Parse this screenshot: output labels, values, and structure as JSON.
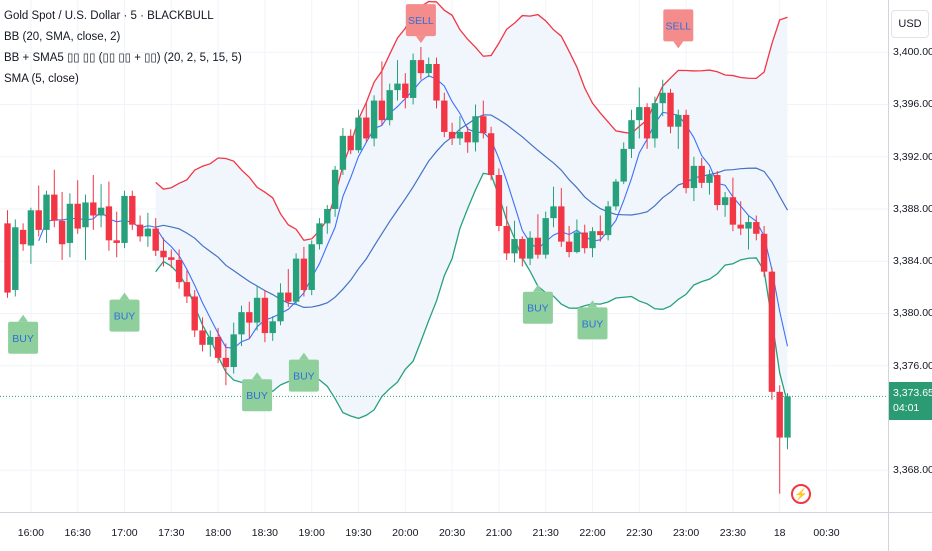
{
  "legend": {
    "symbol": "Gold Spot / U.S. Dollar · 5 · BLACKBULL",
    "indicator_bb": "BB (20, SMA, close, 2)",
    "indicator_custom": "BB + SMA5 ▯▯ ▯▯ (▯▯ ▯▯ + ▯▯) (20, 2, 5, 15, 5)",
    "indicator_sma": "SMA (5, close)"
  },
  "price_axis": {
    "currency_label": "USD",
    "ticks": [
      "3,400.00",
      "3,396.00",
      "3,392.00",
      "3,388.00",
      "3,384.00",
      "3,380.00",
      "3,376.00",
      "3,368.00"
    ],
    "last_price": "3,373.65",
    "countdown": "04:01"
  },
  "time_axis": {
    "ticks": [
      "16:00",
      "16:30",
      "17:00",
      "17:30",
      "18:00",
      "18:30",
      "19:00",
      "19:30",
      "20:00",
      "20:30",
      "21:00",
      "21:30",
      "22:00",
      "22:30",
      "23:00",
      "23:30",
      "18",
      "00:30"
    ]
  },
  "icons": {
    "alert": "lightning-alert-icon"
  },
  "colors": {
    "up": "#26a17b",
    "down": "#f23645",
    "bb_upper": "#f23645",
    "bb_basis": "#4472c4",
    "bb_lower": "#26a17b",
    "bb_fill": "#eef5fc",
    "sma5": "#2962ff",
    "buy_label": "#8fcf9c",
    "sell_label": "#f48c8c",
    "signal_text": "#2f6fdb"
  },
  "chart_data": {
    "type": "candlestick",
    "symbol": "XAUUSD",
    "interval_min": 5,
    "x_range": [
      "15:45",
      "00:55"
    ],
    "ylim": [
      3364.8,
      3404.0
    ],
    "grid": true,
    "candles": [
      {
        "t": "15:45",
        "o": 3386.9,
        "h": 3387.9,
        "l": 3381.2,
        "c": 3381.6
      },
      {
        "t": "15:50",
        "o": 3381.8,
        "h": 3387.2,
        "l": 3381.3,
        "c": 3386.6
      },
      {
        "t": "15:55",
        "o": 3386.4,
        "h": 3386.9,
        "l": 3384.8,
        "c": 3385.3
      },
      {
        "t": "16:00",
        "o": 3385.2,
        "h": 3388.1,
        "l": 3383.8,
        "c": 3387.9
      },
      {
        "t": "16:05",
        "o": 3387.9,
        "h": 3389.8,
        "l": 3385.9,
        "c": 3386.4
      },
      {
        "t": "16:10",
        "o": 3386.4,
        "h": 3389.4,
        "l": 3385.4,
        "c": 3389.1
      },
      {
        "t": "16:15",
        "o": 3389.1,
        "h": 3391.0,
        "l": 3386.6,
        "c": 3387.1
      },
      {
        "t": "16:20",
        "o": 3387.1,
        "h": 3389.3,
        "l": 3384.1,
        "c": 3385.3
      },
      {
        "t": "16:25",
        "o": 3385.4,
        "h": 3389.2,
        "l": 3384.3,
        "c": 3388.4
      },
      {
        "t": "16:30",
        "o": 3388.4,
        "h": 3390.2,
        "l": 3386.1,
        "c": 3386.5
      },
      {
        "t": "16:35",
        "o": 3386.6,
        "h": 3389.1,
        "l": 3384.1,
        "c": 3388.5
      },
      {
        "t": "16:40",
        "o": 3388.5,
        "h": 3390.6,
        "l": 3386.4,
        "c": 3387.5
      },
      {
        "t": "16:45",
        "o": 3387.5,
        "h": 3389.9,
        "l": 3386.6,
        "c": 3388.1
      },
      {
        "t": "16:50",
        "o": 3388.2,
        "h": 3390.1,
        "l": 3384.8,
        "c": 3385.6
      },
      {
        "t": "16:55",
        "o": 3385.6,
        "h": 3387.8,
        "l": 3384.3,
        "c": 3385.4
      },
      {
        "t": "17:00",
        "o": 3385.4,
        "h": 3389.4,
        "l": 3385.0,
        "c": 3389.0
      },
      {
        "t": "17:05",
        "o": 3389.0,
        "h": 3389.4,
        "l": 3386.4,
        "c": 3386.8
      },
      {
        "t": "17:10",
        "o": 3386.8,
        "h": 3387.5,
        "l": 3385.5,
        "c": 3385.9
      },
      {
        "t": "17:15",
        "o": 3385.9,
        "h": 3387.7,
        "l": 3385.1,
        "c": 3386.5
      },
      {
        "t": "17:20",
        "o": 3386.5,
        "h": 3387.3,
        "l": 3384.4,
        "c": 3384.8
      },
      {
        "t": "17:25",
        "o": 3384.8,
        "h": 3385.8,
        "l": 3383.6,
        "c": 3384.3
      },
      {
        "t": "17:30",
        "o": 3384.3,
        "h": 3384.9,
        "l": 3383.5,
        "c": 3384.1
      },
      {
        "t": "17:35",
        "o": 3384.1,
        "h": 3384.9,
        "l": 3381.9,
        "c": 3382.4
      },
      {
        "t": "17:40",
        "o": 3382.4,
        "h": 3383.3,
        "l": 3380.8,
        "c": 3381.3
      },
      {
        "t": "17:45",
        "o": 3381.3,
        "h": 3381.8,
        "l": 3378.2,
        "c": 3378.7
      },
      {
        "t": "17:50",
        "o": 3378.7,
        "h": 3379.7,
        "l": 3377.1,
        "c": 3377.6
      },
      {
        "t": "17:55",
        "o": 3377.6,
        "h": 3378.7,
        "l": 3376.7,
        "c": 3378.2
      },
      {
        "t": "18:00",
        "o": 3378.2,
        "h": 3378.9,
        "l": 3376.2,
        "c": 3376.6
      },
      {
        "t": "18:05",
        "o": 3376.6,
        "h": 3377.7,
        "l": 3374.5,
        "c": 3375.9
      },
      {
        "t": "18:10",
        "o": 3375.9,
        "h": 3379.3,
        "l": 3375.4,
        "c": 3378.4
      },
      {
        "t": "18:15",
        "o": 3378.4,
        "h": 3380.6,
        "l": 3377.5,
        "c": 3380.1
      },
      {
        "t": "18:20",
        "o": 3380.1,
        "h": 3380.9,
        "l": 3378.1,
        "c": 3379.3
      },
      {
        "t": "18:25",
        "o": 3379.3,
        "h": 3382.1,
        "l": 3378.7,
        "c": 3381.2
      },
      {
        "t": "18:30",
        "o": 3381.2,
        "h": 3381.8,
        "l": 3377.8,
        "c": 3378.5
      },
      {
        "t": "18:35",
        "o": 3378.5,
        "h": 3379.8,
        "l": 3377.9,
        "c": 3379.4
      },
      {
        "t": "18:40",
        "o": 3379.4,
        "h": 3382.3,
        "l": 3379.1,
        "c": 3381.6
      },
      {
        "t": "18:45",
        "o": 3381.6,
        "h": 3383.4,
        "l": 3380.5,
        "c": 3380.9
      },
      {
        "t": "18:50",
        "o": 3380.9,
        "h": 3384.6,
        "l": 3380.7,
        "c": 3384.2
      },
      {
        "t": "18:55",
        "o": 3384.2,
        "h": 3385.1,
        "l": 3381.3,
        "c": 3381.8
      },
      {
        "t": "19:00",
        "o": 3381.8,
        "h": 3385.6,
        "l": 3381.4,
        "c": 3385.3
      },
      {
        "t": "19:05",
        "o": 3385.3,
        "h": 3387.3,
        "l": 3384.9,
        "c": 3386.9
      },
      {
        "t": "19:10",
        "o": 3386.9,
        "h": 3388.3,
        "l": 3386.1,
        "c": 3388.0
      },
      {
        "t": "19:15",
        "o": 3388.0,
        "h": 3391.3,
        "l": 3387.4,
        "c": 3391.0
      },
      {
        "t": "19:20",
        "o": 3391.0,
        "h": 3394.2,
        "l": 3390.6,
        "c": 3393.6
      },
      {
        "t": "19:25",
        "o": 3393.6,
        "h": 3394.1,
        "l": 3392.2,
        "c": 3392.5
      },
      {
        "t": "19:30",
        "o": 3392.5,
        "h": 3395.6,
        "l": 3392.3,
        "c": 3395.0
      },
      {
        "t": "19:35",
        "o": 3395.0,
        "h": 3396.1,
        "l": 3393.1,
        "c": 3393.4
      },
      {
        "t": "19:40",
        "o": 3393.4,
        "h": 3396.7,
        "l": 3392.8,
        "c": 3396.3
      },
      {
        "t": "19:45",
        "o": 3396.3,
        "h": 3399.3,
        "l": 3394.4,
        "c": 3394.8
      },
      {
        "t": "19:50",
        "o": 3394.8,
        "h": 3397.6,
        "l": 3394.4,
        "c": 3397.1
      },
      {
        "t": "19:55",
        "o": 3397.1,
        "h": 3399.4,
        "l": 3396.3,
        "c": 3397.6
      },
      {
        "t": "20:00",
        "o": 3397.6,
        "h": 3398.4,
        "l": 3395.7,
        "c": 3396.5
      },
      {
        "t": "20:05",
        "o": 3396.5,
        "h": 3399.9,
        "l": 3396.0,
        "c": 3399.4
      },
      {
        "t": "20:10",
        "o": 3399.4,
        "h": 3400.4,
        "l": 3397.9,
        "c": 3398.4
      },
      {
        "t": "20:15",
        "o": 3398.4,
        "h": 3399.6,
        "l": 3398.1,
        "c": 3399.1
      },
      {
        "t": "20:20",
        "o": 3399.1,
        "h": 3399.6,
        "l": 3395.7,
        "c": 3396.3
      },
      {
        "t": "20:25",
        "o": 3396.3,
        "h": 3396.9,
        "l": 3393.5,
        "c": 3393.9
      },
      {
        "t": "20:30",
        "o": 3393.9,
        "h": 3394.6,
        "l": 3392.9,
        "c": 3393.4
      },
      {
        "t": "20:35",
        "o": 3393.4,
        "h": 3395.1,
        "l": 3392.9,
        "c": 3393.9
      },
      {
        "t": "20:40",
        "o": 3393.9,
        "h": 3394.3,
        "l": 3392.3,
        "c": 3393.1
      },
      {
        "t": "20:45",
        "o": 3393.1,
        "h": 3396.0,
        "l": 3392.4,
        "c": 3395.1
      },
      {
        "t": "20:50",
        "o": 3395.1,
        "h": 3396.3,
        "l": 3393.4,
        "c": 3393.8
      },
      {
        "t": "20:55",
        "o": 3393.8,
        "h": 3394.3,
        "l": 3390.2,
        "c": 3390.6
      },
      {
        "t": "21:00",
        "o": 3390.6,
        "h": 3391.1,
        "l": 3386.3,
        "c": 3386.7
      },
      {
        "t": "21:05",
        "o": 3386.7,
        "h": 3388.2,
        "l": 3384.1,
        "c": 3384.6
      },
      {
        "t": "21:10",
        "o": 3384.6,
        "h": 3387.1,
        "l": 3383.9,
        "c": 3385.7
      },
      {
        "t": "21:15",
        "o": 3385.7,
        "h": 3385.9,
        "l": 3383.6,
        "c": 3384.2
      },
      {
        "t": "21:20",
        "o": 3384.2,
        "h": 3386.3,
        "l": 3383.7,
        "c": 3385.8
      },
      {
        "t": "21:25",
        "o": 3385.8,
        "h": 3387.6,
        "l": 3384.2,
        "c": 3384.5
      },
      {
        "t": "21:30",
        "o": 3384.5,
        "h": 3387.8,
        "l": 3384.2,
        "c": 3387.3
      },
      {
        "t": "21:35",
        "o": 3387.3,
        "h": 3389.7,
        "l": 3386.6,
        "c": 3388.2
      },
      {
        "t": "21:40",
        "o": 3388.2,
        "h": 3389.6,
        "l": 3385.1,
        "c": 3385.5
      },
      {
        "t": "21:45",
        "o": 3385.5,
        "h": 3386.7,
        "l": 3384.3,
        "c": 3384.7
      },
      {
        "t": "21:50",
        "o": 3384.7,
        "h": 3387.2,
        "l": 3384.6,
        "c": 3386.2
      },
      {
        "t": "21:55",
        "o": 3386.2,
        "h": 3386.8,
        "l": 3384.6,
        "c": 3385.0
      },
      {
        "t": "22:00",
        "o": 3385.0,
        "h": 3386.6,
        "l": 3384.3,
        "c": 3386.3
      },
      {
        "t": "22:05",
        "o": 3386.3,
        "h": 3387.5,
        "l": 3385.5,
        "c": 3386.0
      },
      {
        "t": "22:10",
        "o": 3386.0,
        "h": 3388.6,
        "l": 3385.6,
        "c": 3388.2
      },
      {
        "t": "22:15",
        "o": 3388.2,
        "h": 3390.3,
        "l": 3387.9,
        "c": 3390.1
      },
      {
        "t": "22:20",
        "o": 3390.1,
        "h": 3393.1,
        "l": 3389.9,
        "c": 3392.6
      },
      {
        "t": "22:25",
        "o": 3392.6,
        "h": 3395.6,
        "l": 3391.9,
        "c": 3394.8
      },
      {
        "t": "22:30",
        "o": 3394.8,
        "h": 3397.3,
        "l": 3393.4,
        "c": 3395.8
      },
      {
        "t": "22:35",
        "o": 3395.8,
        "h": 3396.1,
        "l": 3392.6,
        "c": 3393.4
      },
      {
        "t": "22:40",
        "o": 3393.4,
        "h": 3396.6,
        "l": 3392.7,
        "c": 3396.1
      },
      {
        "t": "22:45",
        "o": 3396.1,
        "h": 3397.9,
        "l": 3395.1,
        "c": 3396.9
      },
      {
        "t": "22:50",
        "o": 3396.9,
        "h": 3397.2,
        "l": 3393.8,
        "c": 3394.3
      },
      {
        "t": "22:55",
        "o": 3394.3,
        "h": 3395.6,
        "l": 3392.6,
        "c": 3395.2
      },
      {
        "t": "23:00",
        "o": 3395.2,
        "h": 3395.6,
        "l": 3389.2,
        "c": 3389.6
      },
      {
        "t": "23:05",
        "o": 3389.6,
        "h": 3392.0,
        "l": 3388.6,
        "c": 3391.3
      },
      {
        "t": "23:10",
        "o": 3391.3,
        "h": 3391.9,
        "l": 3389.6,
        "c": 3390.0
      },
      {
        "t": "23:15",
        "o": 3390.0,
        "h": 3391.0,
        "l": 3389.1,
        "c": 3390.6
      },
      {
        "t": "23:20",
        "o": 3390.6,
        "h": 3390.9,
        "l": 3387.9,
        "c": 3388.3
      },
      {
        "t": "23:25",
        "o": 3388.3,
        "h": 3389.3,
        "l": 3387.4,
        "c": 3388.9
      },
      {
        "t": "23:30",
        "o": 3388.9,
        "h": 3390.4,
        "l": 3386.3,
        "c": 3386.8
      },
      {
        "t": "23:35",
        "o": 3386.8,
        "h": 3388.6,
        "l": 3386.0,
        "c": 3386.5
      },
      {
        "t": "23:40",
        "o": 3386.5,
        "h": 3387.5,
        "l": 3384.9,
        "c": 3387.0
      },
      {
        "t": "23:45",
        "o": 3387.0,
        "h": 3387.5,
        "l": 3385.6,
        "c": 3386.1
      },
      {
        "t": "23:50",
        "o": 3386.1,
        "h": 3386.7,
        "l": 3382.8,
        "c": 3383.2
      },
      {
        "t": "23:55",
        "o": 3383.2,
        "h": 3383.5,
        "l": 3373.4,
        "c": 3374.0
      },
      {
        "t": "00:00",
        "o": 3374.0,
        "h": 3374.5,
        "l": 3366.2,
        "c": 3370.5
      },
      {
        "t": "00:05",
        "o": 3370.5,
        "h": 3373.9,
        "l": 3369.6,
        "c": 3373.65
      }
    ],
    "signals": [
      {
        "type": "BUY",
        "t": "15:55",
        "price": 3379.9
      },
      {
        "type": "BUY",
        "t": "17:00",
        "price": 3381.6
      },
      {
        "type": "BUY",
        "t": "18:25",
        "price": 3375.5
      },
      {
        "type": "BUY",
        "t": "18:55",
        "price": 3377.0
      },
      {
        "type": "BUY",
        "t": "21:25",
        "price": 3382.2
      },
      {
        "type": "BUY",
        "t": "22:00",
        "price": 3381.0
      },
      {
        "type": "SELL",
        "t": "20:10",
        "price": 3400.7
      },
      {
        "type": "SELL",
        "t": "22:55",
        "price": 3400.3
      }
    ]
  }
}
